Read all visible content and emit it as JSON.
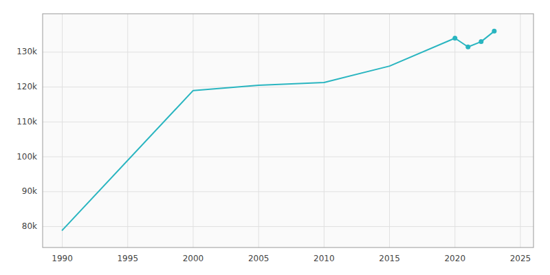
{
  "chart_data": {
    "type": "line",
    "x": [
      1990,
      2000,
      2005,
      2010,
      2015,
      2020,
      2021,
      2022,
      2023
    ],
    "series": [
      {
        "type": "line",
        "color": "#29b5c0",
        "values": [
          78959,
          119000,
          120500,
          121300,
          126000,
          134000,
          131500,
          133000,
          136000
        ]
      },
      {
        "type": "scatter",
        "marker": "circle",
        "color": "#29b5c0",
        "x": [
          2020,
          2021,
          2022,
          2023
        ],
        "values": [
          134000,
          131500,
          133000,
          136000
        ]
      }
    ],
    "xlim": [
      1988.5,
      2026
    ],
    "ylim": [
      74000,
      141000
    ],
    "xticks": [
      1990,
      1995,
      2000,
      2005,
      2010,
      2015,
      2020,
      2025
    ],
    "yticks": [
      {
        "value": 80000,
        "label": "80k"
      },
      {
        "value": 90000,
        "label": "90k"
      },
      {
        "value": 100000,
        "label": "100k"
      },
      {
        "value": 110000,
        "label": "110k"
      },
      {
        "value": 120000,
        "label": "120k"
      },
      {
        "value": 130000,
        "label": "130k"
      }
    ],
    "grid": true
  }
}
